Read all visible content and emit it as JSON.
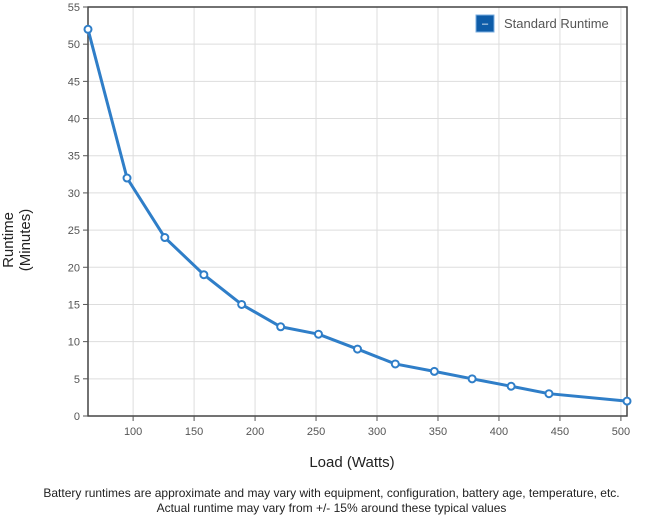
{
  "chart_data": {
    "type": "line",
    "x": [
      63,
      95,
      126,
      158,
      189,
      221,
      252,
      284,
      315,
      347,
      378,
      410,
      441,
      505
    ],
    "series": [
      {
        "name": "Standard Runtime",
        "values": [
          52,
          32,
          24,
          19,
          15,
          12,
          11,
          9,
          7,
          6,
          5,
          4,
          3,
          2
        ]
      }
    ],
    "xlabel": "Load (Watts)",
    "ylabel_line1": "Runtime",
    "ylabel_line2": "(Minutes)",
    "xlim": [
      63,
      505
    ],
    "ylim": [
      0,
      55
    ],
    "x_ticks": [
      "100",
      "150",
      "200",
      "250",
      "300",
      "350",
      "400",
      "450",
      "500"
    ],
    "y_ticks": [
      "0",
      "5",
      "10",
      "15",
      "20",
      "25",
      "30",
      "35",
      "40",
      "45",
      "50",
      "55"
    ],
    "grid": true,
    "legend_position": "top-right",
    "legend_toggle_symbol": "–",
    "colors": {
      "line": "#2f7ec8",
      "marker_fill": "#ffffff",
      "legend_box": "#0e5ca8",
      "grid": "#dddddd",
      "axis": "#555555"
    }
  },
  "footnote": {
    "line1": "Battery runtimes are approximate and may vary with equipment, configuration, battery age, temperature, etc.",
    "line2": "Actual runtime may vary from +/- 15% around these typical values"
  }
}
